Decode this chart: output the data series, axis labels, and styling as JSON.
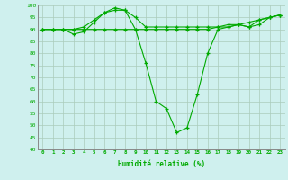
{
  "xlabel": "Humidité relative (%)",
  "bg_color": "#cff0ee",
  "grid_color": "#aaccbb",
  "line_color": "#00aa00",
  "xlim": [
    -0.5,
    23.5
  ],
  "ylim": [
    40,
    100
  ],
  "xticks": [
    0,
    1,
    2,
    3,
    4,
    5,
    6,
    7,
    8,
    9,
    10,
    11,
    12,
    13,
    14,
    15,
    16,
    17,
    18,
    19,
    20,
    21,
    22,
    23
  ],
  "yticks": [
    40,
    45,
    50,
    55,
    60,
    65,
    70,
    75,
    80,
    85,
    90,
    95,
    100
  ],
  "series": [
    [
      90,
      90,
      90,
      90,
      90,
      90,
      90,
      90,
      90,
      90,
      90,
      90,
      90,
      90,
      90,
      90,
      90,
      91,
      92,
      92,
      93,
      94,
      95,
      96
    ],
    [
      90,
      90,
      90,
      88,
      89,
      93,
      97,
      98,
      98,
      90,
      76,
      60,
      57,
      47,
      49,
      63,
      80,
      90,
      91,
      92,
      91,
      94,
      95,
      96
    ],
    [
      90,
      90,
      90,
      90,
      91,
      94,
      97,
      99,
      98,
      95,
      91,
      91,
      91,
      91,
      91,
      91,
      91,
      91,
      91,
      92,
      91,
      92,
      95,
      96
    ]
  ]
}
